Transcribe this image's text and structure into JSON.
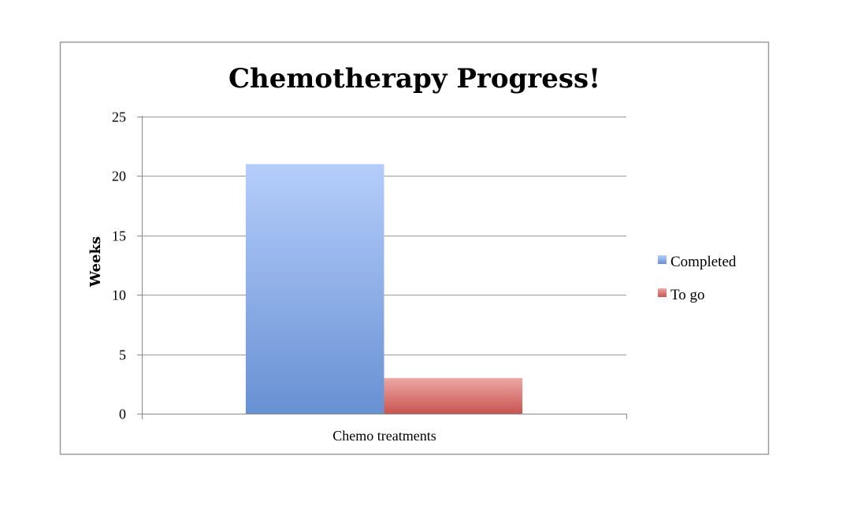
{
  "chart_data": {
    "type": "bar",
    "title": "Chemotherapy Progress!",
    "xlabel": "",
    "ylabel": "Weeks",
    "categories": [
      "Chemo treatments"
    ],
    "series": [
      {
        "name": "Completed",
        "values": [
          21
        ],
        "color": "#7ea3e4"
      },
      {
        "name": "To go",
        "values": [
          3
        ],
        "color": "#d97c7a"
      }
    ],
    "ylim": [
      0,
      25
    ],
    "yticks": [
      "0",
      "5",
      "10",
      "15",
      "20",
      "25"
    ],
    "grid": true,
    "legend_position": "right"
  }
}
